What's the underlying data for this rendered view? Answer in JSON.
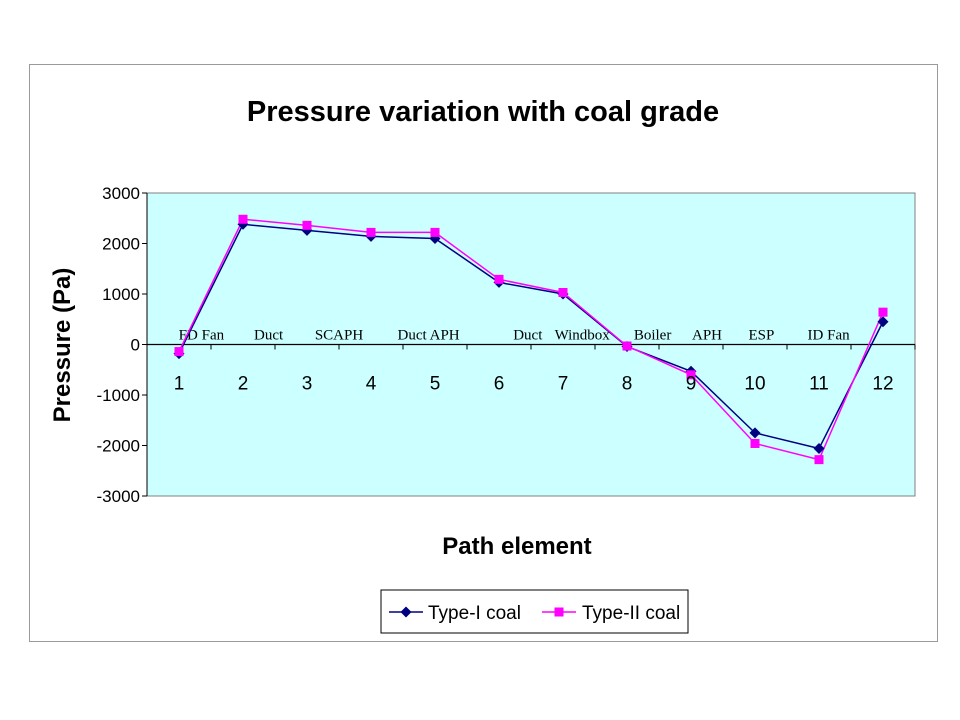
{
  "chart_data": {
    "type": "line",
    "title": "Pressure variation with coal grade",
    "xlabel": "Path element",
    "ylabel": "Pressure (Pa)",
    "x": [
      1,
      2,
      3,
      4,
      5,
      6,
      7,
      8,
      9,
      10,
      11,
      12
    ],
    "x_tick_labels": [
      "1",
      "2",
      "3",
      "4",
      "5",
      "6",
      "7",
      "8",
      "9",
      "10",
      "11",
      "12"
    ],
    "ylim": [
      -3000,
      3000
    ],
    "yticks": [
      3000,
      2000,
      1000,
      0,
      -1000,
      -2000,
      -3000
    ],
    "y_tick_labels": [
      "3000",
      "2000",
      "1000",
      "0",
      "-1000",
      "-2000",
      "-3000"
    ],
    "grid": false,
    "plot_background": "#ccffff",
    "legend_position": "bottom-center",
    "series": [
      {
        "name": "Type-I coal",
        "color": "#000080",
        "marker": "diamond",
        "values": [
          -180,
          2380,
          2260,
          2140,
          2100,
          1230,
          1000,
          -40,
          -530,
          -1750,
          -2060,
          450
        ]
      },
      {
        "name": "Type-II coal",
        "color": "#ff00ff",
        "marker": "square",
        "values": [
          -140,
          2480,
          2360,
          2220,
          2220,
          1290,
          1030,
          -30,
          -600,
          -1960,
          -2280,
          640
        ]
      }
    ],
    "annotations": [
      {
        "text": "FD Fan",
        "x": 1.35
      },
      {
        "text": "Duct",
        "x": 2.4
      },
      {
        "text": "SCAPH",
        "x": 3.5
      },
      {
        "text": "Duct APH",
        "x": 4.9
      },
      {
        "text": "Duct",
        "x": 6.45
      },
      {
        "text": "Windbox",
        "x": 7.3
      },
      {
        "text": "Boiler",
        "x": 8.4
      },
      {
        "text": "APH",
        "x": 9.25
      },
      {
        "text": "ESP",
        "x": 10.1
      },
      {
        "text": "ID Fan",
        "x": 11.15
      }
    ]
  }
}
